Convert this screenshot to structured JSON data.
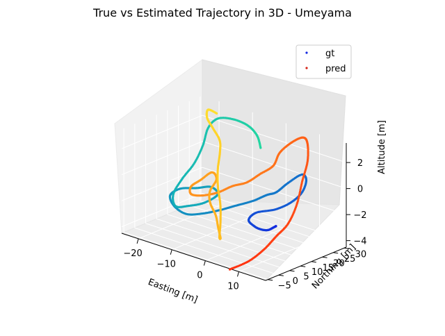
{
  "chart_data": {
    "type": "scatter",
    "projection": "3d",
    "title": "True vs Estimated Trajectory in 3D - Umeyama",
    "xlabel": "Easting [m]",
    "ylabel": "Northing [m]",
    "zlabel": "Altitude [m]",
    "xlim": [
      -25,
      18
    ],
    "ylim": [
      -6,
      31
    ],
    "zlim": [
      -4.5,
      3.5
    ],
    "xticks": [
      "−20",
      "−10",
      "0",
      "10"
    ],
    "xtick_values": [
      -20,
      -10,
      0,
      10
    ],
    "yticks": [
      "−5",
      "0",
      "5",
      "10",
      "15",
      "20",
      "25",
      "30"
    ],
    "ytick_values": [
      -5,
      0,
      5,
      10,
      15,
      20,
      25,
      30
    ],
    "zticks": [
      "−4",
      "−2",
      "0",
      "2"
    ],
    "ztick_values": [
      -4,
      -2,
      0,
      2
    ],
    "grid": true,
    "legend": {
      "position": "top-right",
      "entries": [
        "gt",
        "pred"
      ]
    },
    "series": [
      {
        "name": "gt",
        "color": "#1428e0",
        "colormap": [
          "#1428e0",
          "#1468d0",
          "#1490c0",
          "#14b0b8",
          "#24d8a0"
        ],
        "points": [
          [
            12,
            8,
            -1.8
          ],
          [
            10,
            10,
            -2.2
          ],
          [
            7,
            12,
            -2.8
          ],
          [
            3,
            15,
            -3.3
          ],
          [
            -1,
            18,
            -3.6
          ],
          [
            -4,
            20,
            -3.5
          ],
          [
            -3,
            22,
            -3.0
          ],
          [
            2,
            23,
            -2.4
          ],
          [
            6,
            24,
            -1.6
          ],
          [
            8,
            26,
            -0.8
          ],
          [
            8,
            28,
            0.0
          ],
          [
            6,
            29,
            0.2
          ],
          [
            3,
            27,
            -0.6
          ],
          [
            1,
            25,
            -1.3
          ],
          [
            0,
            22,
            -1.4
          ],
          [
            -2,
            19,
            -1.8
          ],
          [
            -5,
            16,
            -2.2
          ],
          [
            -8,
            13,
            -2.6
          ],
          [
            -11,
            10,
            -2.9
          ],
          [
            -14,
            7,
            -3.0
          ],
          [
            -17,
            6,
            -2.6
          ],
          [
            -19,
            7,
            -2.0
          ],
          [
            -18,
            10,
            -1.6
          ],
          [
            -15,
            13,
            -1.5
          ],
          [
            -12,
            15,
            -1.3
          ],
          [
            -10,
            15,
            -1.7
          ],
          [
            -12,
            12,
            -2.3
          ],
          [
            -15,
            9,
            -2.6
          ],
          [
            -18,
            8,
            -2.8
          ],
          [
            -20,
            10,
            -2.2
          ],
          [
            -20,
            14,
            -1.3
          ],
          [
            -19,
            18,
            -0.3
          ],
          [
            -19,
            22,
            0.8
          ],
          [
            -20,
            26,
            1.8
          ],
          [
            -19,
            29,
            2.4
          ],
          [
            -15,
            30,
            2.6
          ],
          [
            -10,
            29,
            2.6
          ],
          [
            -6,
            27,
            2.3
          ],
          [
            -3,
            24,
            1.8
          ]
        ]
      },
      {
        "name": "pred",
        "color": "#d42418",
        "colormap": [
          "#ff3010",
          "#ff6418",
          "#ff9a20",
          "#ffc020",
          "#ffe030"
        ],
        "points": [
          [
            6,
            -4,
            -4.8
          ],
          [
            9,
            0,
            -4.2
          ],
          [
            11,
            4,
            -3.4
          ],
          [
            12,
            8,
            -2.6
          ],
          [
            13,
            12,
            -1.8
          ],
          [
            13,
            16,
            -0.6
          ],
          [
            12,
            20,
            0.8
          ],
          [
            11,
            24,
            2.0
          ],
          [
            9,
            27,
            3.0
          ],
          [
            7,
            28,
            3.2
          ],
          [
            5,
            26,
            2.8
          ],
          [
            4,
            22,
            2.2
          ],
          [
            4,
            19,
            1.4
          ],
          [
            2,
            16,
            0.8
          ],
          [
            0,
            13,
            0.2
          ],
          [
            -3,
            11,
            -0.2
          ],
          [
            -6,
            9,
            -0.8
          ],
          [
            -10,
            8,
            -1.3
          ],
          [
            -14,
            9,
            -1.6
          ],
          [
            -16,
            12,
            -1.4
          ],
          [
            -15,
            15,
            -1.0
          ],
          [
            -13,
            17,
            -0.4
          ],
          [
            -11,
            16,
            -0.7
          ],
          [
            -11,
            13,
            -1.4
          ],
          [
            -9,
            10,
            -1.9
          ],
          [
            -6,
            8,
            -2.5
          ],
          [
            -4,
            6,
            -3.1
          ],
          [
            -2,
            4,
            -3.6
          ],
          [
            -1,
            2,
            -3.3
          ],
          [
            -2,
            4,
            -2.4
          ],
          [
            -4,
            7,
            -1.4
          ],
          [
            -6,
            9,
            -0.4
          ],
          [
            -8,
            12,
            0.6
          ],
          [
            -10,
            16,
            1.4
          ],
          [
            -12,
            19,
            2.0
          ],
          [
            -16,
            22,
            2.4
          ],
          [
            -19,
            24,
            2.8
          ],
          [
            -20,
            26,
            3.2
          ],
          [
            -18,
            27,
            3.0
          ]
        ]
      }
    ]
  }
}
